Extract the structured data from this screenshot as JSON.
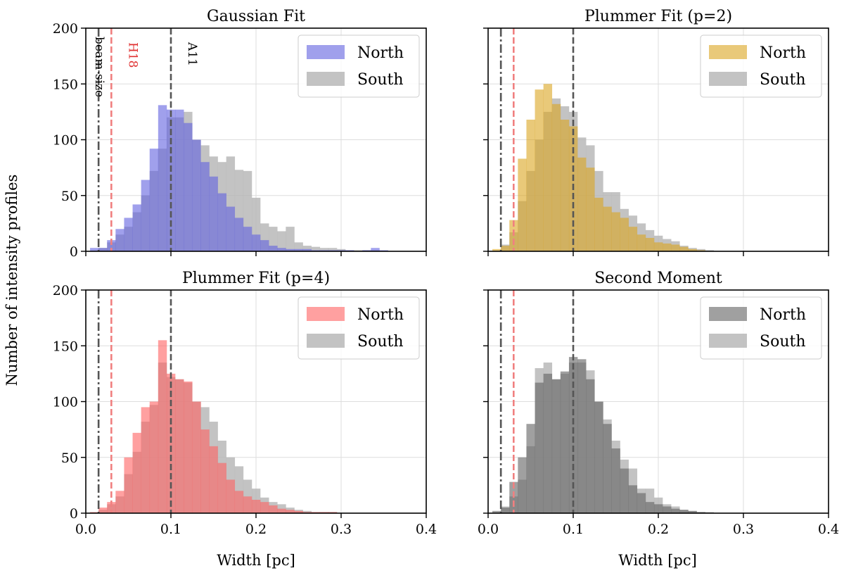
{
  "figure": {
    "ylabel": "Number of intensity profiles",
    "xlabel": "Width [pc]",
    "xlim": [
      0,
      0.4
    ],
    "ylim": [
      0,
      200
    ],
    "xticks": [
      "0.0",
      "0.1",
      "0.2",
      "0.3",
      "0.4"
    ],
    "yticks": [
      "0",
      "50",
      "100",
      "150",
      "200"
    ],
    "bin_edges": [
      0.005,
      0.015,
      0.025,
      0.035,
      0.045,
      0.055,
      0.065,
      0.075,
      0.085,
      0.095,
      0.105,
      0.115,
      0.125,
      0.135,
      0.145,
      0.155,
      0.165,
      0.175,
      0.185,
      0.195,
      0.205,
      0.215,
      0.225,
      0.235,
      0.245,
      0.255,
      0.265,
      0.275,
      0.285,
      0.295,
      0.305,
      0.315,
      0.325,
      0.335,
      0.345,
      0.355
    ],
    "reference_lines": [
      {
        "name": "beam-size",
        "x": 0.015,
        "style": "dashdot",
        "color": "#555555",
        "label": "beam-size"
      },
      {
        "name": "H18",
        "x": 0.03,
        "style": "dashed",
        "color": "#f08080",
        "label": "H18"
      },
      {
        "name": "A11",
        "x": 0.1,
        "style": "dashed",
        "color": "#555555",
        "label": "A11"
      }
    ],
    "legend": {
      "north": "North",
      "south": "South"
    },
    "south_color": "#b4b4b4",
    "south_opacity": 0.8,
    "north_opacity": 0.6
  },
  "chart_data": [
    {
      "type": "bar",
      "panel": "gaussian",
      "title": "Gaussian Fit",
      "north_color": "#6060e0",
      "annotations_shown": true,
      "series": [
        {
          "name": "North",
          "values": [
            3,
            3,
            10,
            20,
            30,
            42,
            64,
            92,
            131,
            127,
            127,
            115,
            100,
            80,
            67,
            52,
            40,
            30,
            22,
            15,
            10,
            5,
            3,
            2,
            2,
            2,
            1,
            1,
            1,
            1,
            1,
            0,
            1,
            3,
            1
          ]
        },
        {
          "name": "South",
          "values": [
            0,
            3,
            8,
            15,
            22,
            35,
            50,
            72,
            92,
            120,
            120,
            125,
            100,
            95,
            85,
            80,
            85,
            73,
            72,
            48,
            25,
            22,
            18,
            22,
            8,
            5,
            4,
            3,
            3,
            2,
            1,
            1,
            1,
            1,
            0
          ]
        }
      ]
    },
    {
      "type": "bar",
      "panel": "plummer2",
      "title": "Plummer Fit (p=2)",
      "north_color": "#daa520",
      "annotations_shown": false,
      "series": [
        {
          "name": "North",
          "values": [
            2,
            5,
            28,
            83,
            118,
            145,
            150,
            132,
            118,
            112,
            84,
            75,
            48,
            40,
            35,
            30,
            22,
            15,
            12,
            8,
            7,
            6,
            4,
            2,
            1,
            0,
            0,
            0,
            0,
            0,
            0,
            0,
            0,
            0,
            0
          ]
        },
        {
          "name": "South",
          "values": [
            0,
            6,
            17,
            45,
            72,
            100,
            125,
            137,
            130,
            125,
            102,
            95,
            72,
            53,
            53,
            38,
            32,
            25,
            19,
            14,
            11,
            9,
            5,
            3,
            2,
            1,
            0,
            0,
            0,
            0,
            0,
            0,
            0,
            0,
            0
          ]
        }
      ]
    },
    {
      "type": "bar",
      "panel": "plummer4",
      "title": "Plummer Fit (p=4)",
      "north_color": "#ff6060",
      "annotations_shown": false,
      "series": [
        {
          "name": "North",
          "values": [
            1,
            5,
            10,
            20,
            50,
            72,
            95,
            100,
            155,
            125,
            120,
            118,
            100,
            75,
            60,
            45,
            30,
            20,
            15,
            12,
            10,
            7,
            4,
            3,
            2,
            1,
            1,
            1,
            1,
            0,
            0,
            0,
            0,
            0,
            0
          ]
        },
        {
          "name": "South",
          "values": [
            0,
            3,
            8,
            15,
            35,
            55,
            82,
            97,
            135,
            122,
            120,
            117,
            100,
            95,
            82,
            65,
            50,
            42,
            30,
            22,
            14,
            10,
            8,
            5,
            3,
            2,
            1,
            1,
            1,
            0,
            0,
            0,
            0,
            0,
            0
          ]
        }
      ]
    },
    {
      "type": "bar",
      "panel": "second_moment",
      "title": "Second Moment",
      "north_color": "#606060",
      "annotations_shown": false,
      "series": [
        {
          "name": "North",
          "values": [
            2,
            5,
            28,
            50,
            80,
            117,
            125,
            120,
            127,
            140,
            138,
            120,
            100,
            80,
            58,
            40,
            25,
            18,
            10,
            8,
            6,
            4,
            3,
            2,
            1,
            0,
            0,
            0,
            0,
            0,
            0,
            0,
            0,
            0,
            0
          ]
        },
        {
          "name": "South",
          "values": [
            0,
            6,
            15,
            30,
            60,
            130,
            135,
            120,
            125,
            135,
            135,
            128,
            100,
            84,
            65,
            48,
            40,
            22,
            22,
            14,
            8,
            6,
            3,
            2,
            1,
            1,
            0,
            0,
            0,
            0,
            0,
            0,
            0,
            0,
            0
          ]
        }
      ]
    }
  ]
}
